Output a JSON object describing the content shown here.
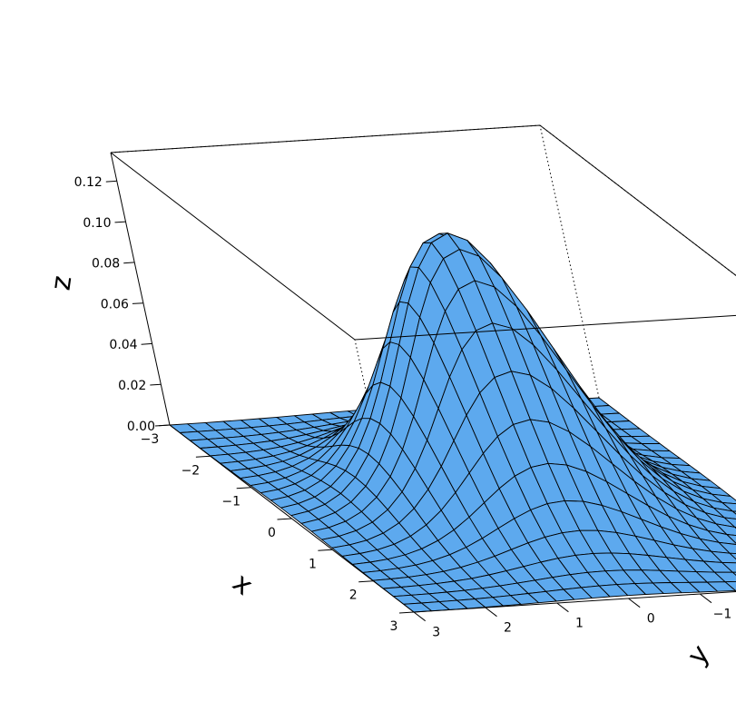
{
  "chart_data": {
    "type": "surface",
    "function": "bivariate standard normal density",
    "x": {
      "label": "x",
      "range": [
        -3,
        3
      ],
      "ticks": [
        -3,
        -2,
        -1,
        0,
        1,
        2,
        3
      ],
      "tick_labels": [
        "−3",
        "−2",
        "−1",
        "0",
        "1",
        "2",
        "3"
      ]
    },
    "y": {
      "label": "y",
      "range": [
        -3,
        3
      ],
      "ticks": [
        -3,
        -2,
        -1,
        0,
        1,
        2,
        3
      ],
      "tick_labels": [
        "−3",
        "−2",
        "−1",
        "0",
        "1",
        "2",
        "3"
      ]
    },
    "z": {
      "label": "z",
      "range": [
        0,
        0.134
      ],
      "ticks": [
        0,
        0.02,
        0.04,
        0.06,
        0.08,
        0.1,
        0.12
      ],
      "tick_labels": [
        "0.00",
        "0.02",
        "0.04",
        "0.06",
        "0.08",
        "0.10",
        "0.12"
      ]
    },
    "grid_points": 25,
    "surface_color": "#5DA9EE",
    "mesh_color": "#000000",
    "box": true,
    "background": "#FFFFFF"
  }
}
